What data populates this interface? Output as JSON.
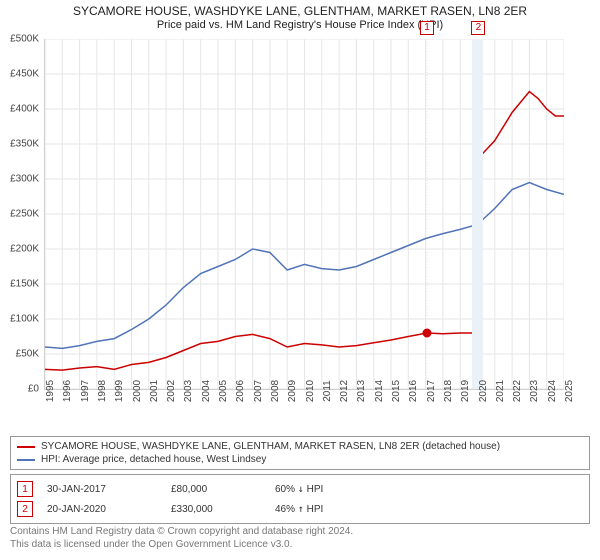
{
  "title": {
    "line1": "SYCAMORE HOUSE, WASHDYKE LANE, GLENTHAM, MARKET RASEN, LN8 2ER",
    "line2": "Price paid vs. HM Land Registry's House Price Index (HPI)",
    "fontsize_line1": 12,
    "fontsize_line2": 11
  },
  "chart": {
    "type": "line",
    "x_range": [
      1995,
      2025
    ],
    "x_ticks": [
      1995,
      1996,
      1997,
      1998,
      1999,
      2000,
      2001,
      2002,
      2003,
      2004,
      2005,
      2006,
      2007,
      2008,
      2009,
      2010,
      2011,
      2012,
      2013,
      2014,
      2015,
      2016,
      2017,
      2018,
      2019,
      2020,
      2021,
      2022,
      2023,
      2024,
      2025
    ],
    "y_range": [
      0,
      500000
    ],
    "y_ticks": [
      0,
      50000,
      100000,
      150000,
      200000,
      250000,
      300000,
      350000,
      400000,
      450000,
      500000
    ],
    "y_tick_labels": [
      "£0",
      "£50K",
      "£100K",
      "£150K",
      "£200K",
      "£250K",
      "£300K",
      "£350K",
      "£400K",
      "£450K",
      "£500K"
    ],
    "background_color": "#ffffff",
    "grid_color": "#e6e6e6",
    "axis_color": "#cfcfcf",
    "label_fontsize": 10,
    "series": [
      {
        "name": "subject_price",
        "color": "#cc0000",
        "width": 1.5,
        "points": [
          [
            1995.0,
            28000
          ],
          [
            1996.0,
            27000
          ],
          [
            1997.0,
            30000
          ],
          [
            1998.0,
            32000
          ],
          [
            1999.0,
            28000
          ],
          [
            2000.0,
            35000
          ],
          [
            2001.0,
            38000
          ],
          [
            2002.0,
            45000
          ],
          [
            2003.0,
            55000
          ],
          [
            2004.0,
            65000
          ],
          [
            2005.0,
            68000
          ],
          [
            2006.0,
            75000
          ],
          [
            2007.0,
            78000
          ],
          [
            2008.0,
            72000
          ],
          [
            2009.0,
            60000
          ],
          [
            2010.0,
            65000
          ],
          [
            2011.0,
            63000
          ],
          [
            2012.0,
            60000
          ],
          [
            2013.0,
            62000
          ],
          [
            2014.0,
            66000
          ],
          [
            2015.0,
            70000
          ],
          [
            2016.0,
            75000
          ],
          [
            2017.08,
            80000
          ],
          [
            2018.0,
            79000
          ],
          [
            2019.0,
            80000
          ],
          [
            2020.05,
            80000
          ],
          [
            2020.06,
            330000
          ],
          [
            2021.0,
            355000
          ],
          [
            2022.0,
            395000
          ],
          [
            2022.5,
            410000
          ],
          [
            2023.0,
            425000
          ],
          [
            2023.5,
            415000
          ],
          [
            2024.0,
            400000
          ],
          [
            2024.5,
            390000
          ],
          [
            2025.0,
            390000
          ]
        ],
        "markers": [
          {
            "x": 2017.08,
            "y": 80000
          },
          {
            "x": 2020.05,
            "y": 330000
          }
        ]
      },
      {
        "name": "hpi",
        "color": "#5174b8",
        "width": 1.5,
        "points": [
          [
            1995.0,
            60000
          ],
          [
            1996.0,
            58000
          ],
          [
            1997.0,
            62000
          ],
          [
            1998.0,
            68000
          ],
          [
            1999.0,
            72000
          ],
          [
            2000.0,
            85000
          ],
          [
            2001.0,
            100000
          ],
          [
            2002.0,
            120000
          ],
          [
            2003.0,
            145000
          ],
          [
            2004.0,
            165000
          ],
          [
            2005.0,
            175000
          ],
          [
            2006.0,
            185000
          ],
          [
            2007.0,
            200000
          ],
          [
            2008.0,
            195000
          ],
          [
            2009.0,
            170000
          ],
          [
            2010.0,
            178000
          ],
          [
            2011.0,
            172000
          ],
          [
            2012.0,
            170000
          ],
          [
            2013.0,
            175000
          ],
          [
            2014.0,
            185000
          ],
          [
            2015.0,
            195000
          ],
          [
            2016.0,
            205000
          ],
          [
            2017.0,
            215000
          ],
          [
            2018.0,
            222000
          ],
          [
            2019.0,
            228000
          ],
          [
            2020.0,
            235000
          ],
          [
            2021.0,
            258000
          ],
          [
            2022.0,
            285000
          ],
          [
            2023.0,
            295000
          ],
          [
            2024.0,
            285000
          ],
          [
            2025.0,
            278000
          ]
        ]
      }
    ],
    "flags": [
      {
        "n": "1",
        "x": 2017.08
      },
      {
        "n": "2",
        "x": 2020.05
      }
    ],
    "highlight_band": {
      "x": 2020.0,
      "color": "#eaf1f8",
      "width_years": 0.6
    }
  },
  "legend": {
    "items": [
      {
        "color": "#cc0000",
        "label": "SYCAMORE HOUSE, WASHDYKE LANE, GLENTHAM, MARKET RASEN, LN8 2ER (detached house)"
      },
      {
        "color": "#5174b8",
        "label": "HPI: Average price, detached house, West Lindsey"
      }
    ]
  },
  "events": [
    {
      "n": "1",
      "date": "30-JAN-2017",
      "price": "£80,000",
      "delta": "60%",
      "dir": "↓",
      "rel": "HPI"
    },
    {
      "n": "2",
      "date": "20-JAN-2020",
      "price": "£330,000",
      "delta": "46%",
      "dir": "↑",
      "rel": "HPI"
    }
  ],
  "attribution": {
    "line1": "Contains HM Land Registry data © Crown copyright and database right 2024.",
    "line2": "This data is licensed under the Open Government Licence v3.0."
  }
}
